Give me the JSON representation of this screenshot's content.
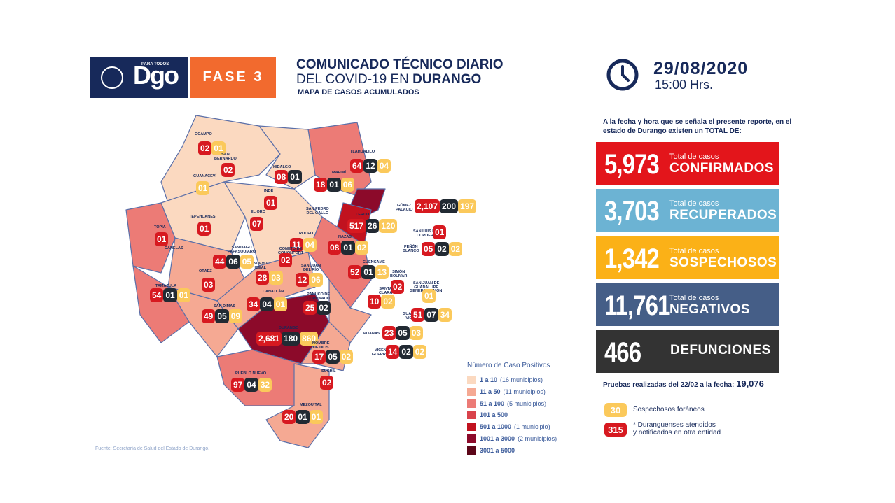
{
  "header": {
    "logo_text": "Dgo",
    "logo_para": "PARA TODOS",
    "fase": "FASE 3",
    "title_line1": "COMUNICADO TÉCNICO DIARIO",
    "title_line2_prefix": "DEL COVID-19 EN ",
    "title_line2_bold": "DURANGO",
    "subtitle": "MAPA DE CASOS ACUMULADOS"
  },
  "datetime": {
    "date": "29/08/2020",
    "time": "15:00 Hrs."
  },
  "intro": "A la fecha y hora que se señala el presente reporte, en el estado de Durango existen un TOTAL DE:",
  "stats": [
    {
      "value": "5,973",
      "small": "Total de casos",
      "label": "CONFIRMADOS",
      "color": "#e3151b"
    },
    {
      "value": "3,703",
      "small": "Total de casos",
      "label": "RECUPERADOS",
      "color": "#6cb3d3"
    },
    {
      "value": "1,342",
      "small": "Total de casos",
      "label": "SOSPECHOSOS",
      "color": "#fbb117"
    },
    {
      "value": "11,761",
      "small": "Total de casos",
      "label": "NEGATIVOS",
      "color": "#455e87"
    },
    {
      "value": "466",
      "small": "",
      "label": "DEFUNCIONES",
      "color": "#333333"
    }
  ],
  "pruebas": {
    "label": "Pruebas realizadas del 22/02 a la fecha: ",
    "value": "19,076"
  },
  "side_legend": [
    {
      "chip": "30",
      "text": "Sospechosos foráneos",
      "color": "#fbc95b"
    },
    {
      "chip": "315",
      "text": "* Duranguenses atendidos\ny notificados en otra entidad",
      "color": "#d71920"
    }
  ],
  "map_legend": {
    "title": "Número de Caso Positivos",
    "items": [
      {
        "range": "1 a 10",
        "note": "(16 municipios)",
        "color": "#fbd9c0"
      },
      {
        "range": "11 a 50",
        "note": "(11 municipios)",
        "color": "#f5a993"
      },
      {
        "range": "51 a 100",
        "note": "(5 municipios)",
        "color": "#ec7b76"
      },
      {
        "range": "101 a 500",
        "note": "",
        "color": "#d9434b"
      },
      {
        "range": "501 a 1000",
        "note": "(1 municipio)",
        "color": "#c1121f"
      },
      {
        "range": "1001 a 3000",
        "note": "(2 municipios)",
        "color": "#8c0a2a"
      },
      {
        "range": "3001 a 5000",
        "note": "",
        "color": "#5c0618"
      }
    ]
  },
  "fuente": "Fuente: Secretaría de Salud del Estado de Durango.",
  "municipios": [
    {
      "name": "OCAMPO",
      "badges": [
        "02",
        "01"
      ]
    },
    {
      "name": "SAN\nBERNARDO",
      "badges": [
        "02"
      ]
    },
    {
      "name": "GUANACEVÍ",
      "badges": [
        "01"
      ]
    },
    {
      "name": "HIDALGO",
      "badges": [
        "08",
        "01"
      ]
    },
    {
      "name": "TLAHUALILO",
      "badges": [
        "64",
        "12",
        "04"
      ]
    },
    {
      "name": "MAPIMÍ",
      "badges": [
        "18",
        "01",
        "06"
      ]
    },
    {
      "name": "INDÉ",
      "badges": [
        "01"
      ]
    },
    {
      "name": "GÓMEZ\nPALACIO",
      "badges": [
        "2,107",
        "200",
        "197"
      ]
    },
    {
      "name": "SAN PEDRO\nDEL GALLO",
      "badges": []
    },
    {
      "name": "EL ORO",
      "badges": [
        "07"
      ]
    },
    {
      "name": "TEPEHUANES",
      "badges": [
        "01"
      ]
    },
    {
      "name": "LERDO",
      "badges": [
        "517",
        "26",
        "120"
      ]
    },
    {
      "name": "SAN LUIS DEL\nCORDERO",
      "badges": [
        "01"
      ]
    },
    {
      "name": "TOPIA",
      "badges": [
        "01"
      ]
    },
    {
      "name": "RODEO",
      "badges": [
        "11",
        "04"
      ]
    },
    {
      "name": "NAZAS",
      "badges": [
        "08",
        "01",
        "02"
      ]
    },
    {
      "name": "PEÑÓN\nBLANCO",
      "badges": [
        "05",
        "02",
        "02"
      ]
    },
    {
      "name": "CANELAS",
      "badges": []
    },
    {
      "name": "SANTIAGO\nPAPASQUIARO",
      "badges": [
        "44",
        "06",
        "05"
      ]
    },
    {
      "name": "CONETO DE\nCOMONFORT",
      "badges": [
        "02"
      ]
    },
    {
      "name": "CUENCAMÉ",
      "badges": [
        "52",
        "01",
        "13"
      ]
    },
    {
      "name": "SIMÓN\nBOLÍVAR",
      "badges": []
    },
    {
      "name": "NUEVO\nIDEAL",
      "badges": [
        "28",
        "03"
      ]
    },
    {
      "name": "SAN JUAN\nDEL RÍO",
      "badges": [
        "12",
        "06"
      ]
    },
    {
      "name": "OTÁEZ",
      "badges": [
        "03"
      ]
    },
    {
      "name": "SAN JUAN DE\nGUADALUPE",
      "badges": [
        "02"
      ]
    },
    {
      "name": "SANTA\nCLARA",
      "badges": [
        "10",
        "02"
      ]
    },
    {
      "name": "GENERAL SIMÓN",
      "badges": [
        "01"
      ]
    },
    {
      "name": "TAMAZULA",
      "badges": [
        "54",
        "01",
        "01"
      ]
    },
    {
      "name": "CANATLÁN",
      "badges": [
        "34",
        "04",
        "01"
      ]
    },
    {
      "name": "PÁNUCO DE\nCORONADO",
      "badges": [
        "25",
        "02"
      ]
    },
    {
      "name": "GUADALUPE\nVICTORIA",
      "badges": [
        "51",
        "07",
        "34"
      ]
    },
    {
      "name": "SAN DIMAS",
      "badges": [
        "49",
        "05",
        "09"
      ]
    },
    {
      "name": "DURANGO",
      "badges": [
        "2,681",
        "180",
        "860"
      ]
    },
    {
      "name": "POANAS",
      "badges": [
        "23",
        "05",
        "03"
      ]
    },
    {
      "name": "NOMBRE\nDE DIOS",
      "badges": [
        "17",
        "05",
        "02"
      ]
    },
    {
      "name": "VICENTE\nGUERRERO",
      "badges": [
        "14",
        "02",
        "02"
      ]
    },
    {
      "name": "PUEBLO NUEVO",
      "badges": [
        "97",
        "04",
        "32"
      ]
    },
    {
      "name": "SÚCHIL",
      "badges": [
        "02"
      ]
    },
    {
      "name": "MEZQUITAL",
      "badges": [
        "20",
        "01",
        "01"
      ]
    }
  ]
}
